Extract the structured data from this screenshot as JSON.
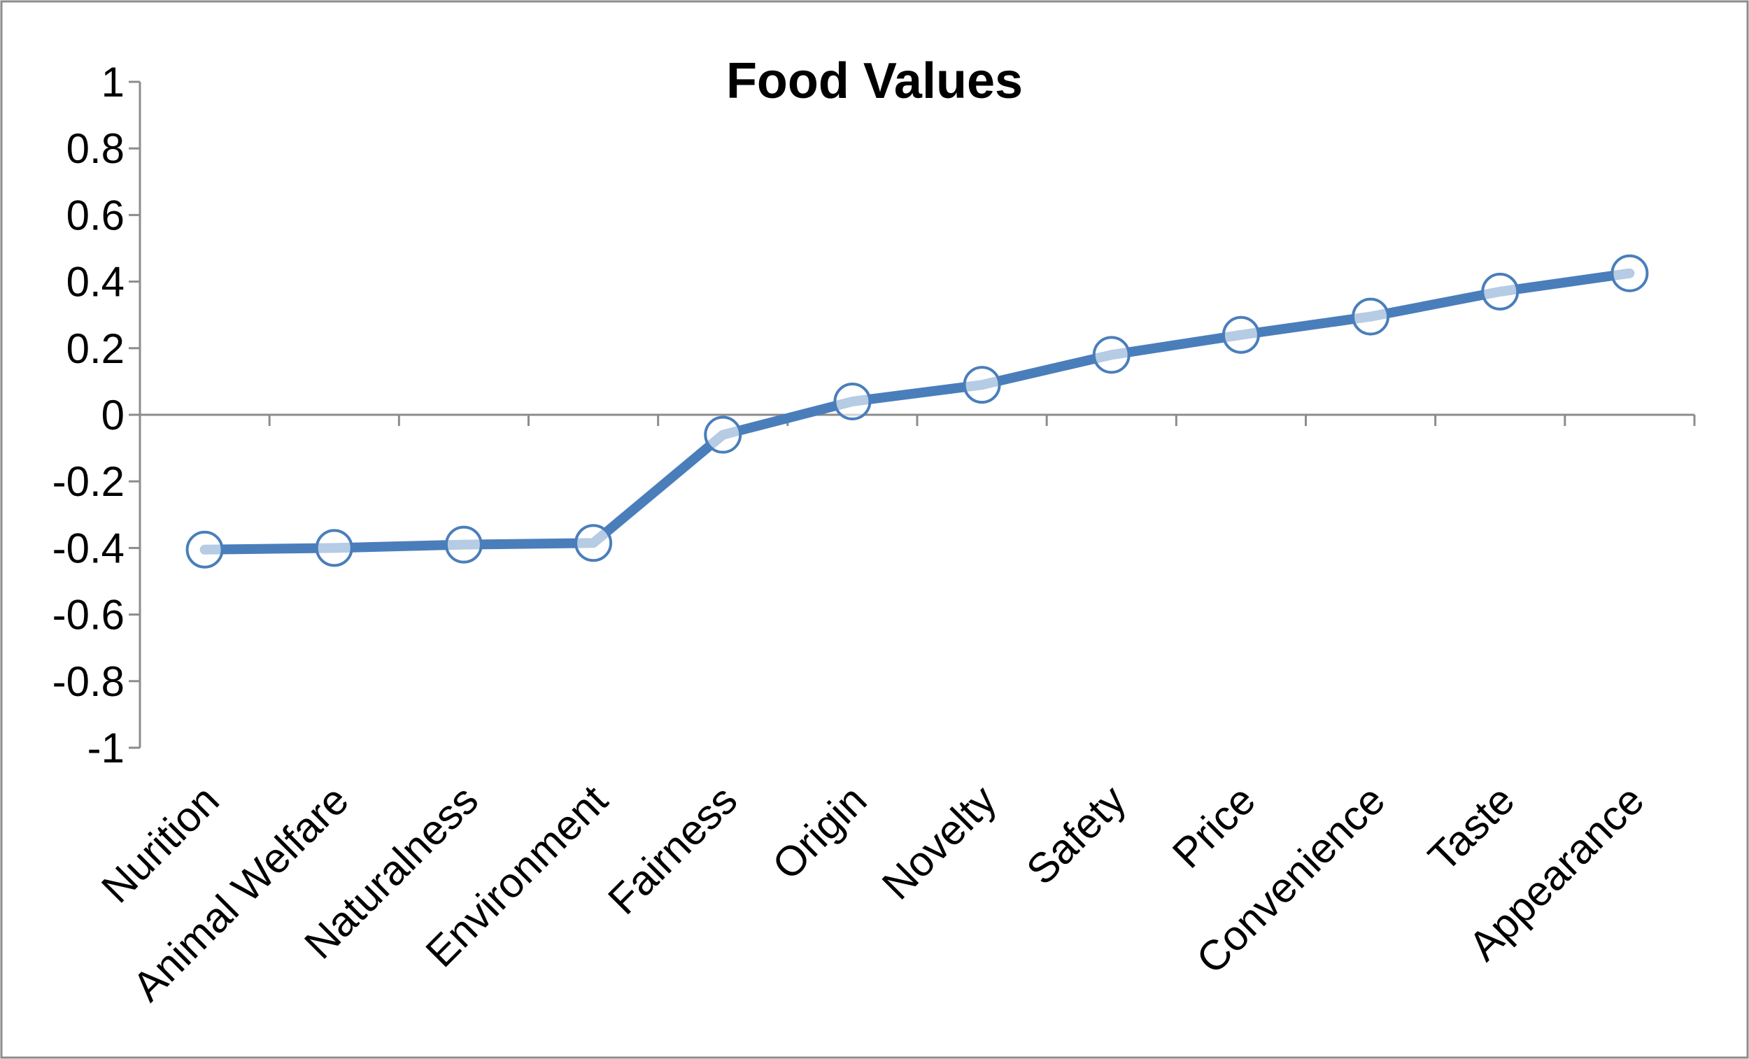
{
  "chart_data": {
    "type": "line",
    "title": "Food Values",
    "xlabel": "",
    "ylabel": "",
    "categories": [
      "Nurition",
      "Animal Welfare",
      "Naturalness",
      "Environment",
      "Fairness",
      "Origin",
      "Novelty",
      "Safety",
      "Price",
      "Convenience",
      "Taste",
      "Appearance"
    ],
    "series": [
      {
        "values": [
          -0.405,
          -0.4,
          -0.39,
          -0.385,
          -0.06,
          0.04,
          0.09,
          0.18,
          0.24,
          0.295,
          0.37,
          0.425
        ],
        "color": "#4a7ebb"
      }
    ],
    "ylim": [
      -1,
      1
    ],
    "yticks": [
      1,
      0.8,
      0.6,
      0.4,
      0.2,
      0,
      -0.2,
      -0.4,
      -0.6,
      -0.8,
      -1
    ],
    "ytick_labels": [
      "1",
      "0.8",
      "0.6",
      "0.4",
      "0.2",
      "0",
      "-0.2",
      "-0.4",
      "-0.6",
      "-0.8",
      "-1"
    ],
    "grid": false,
    "legend": "none",
    "frame_color": "#8c8c8c"
  }
}
